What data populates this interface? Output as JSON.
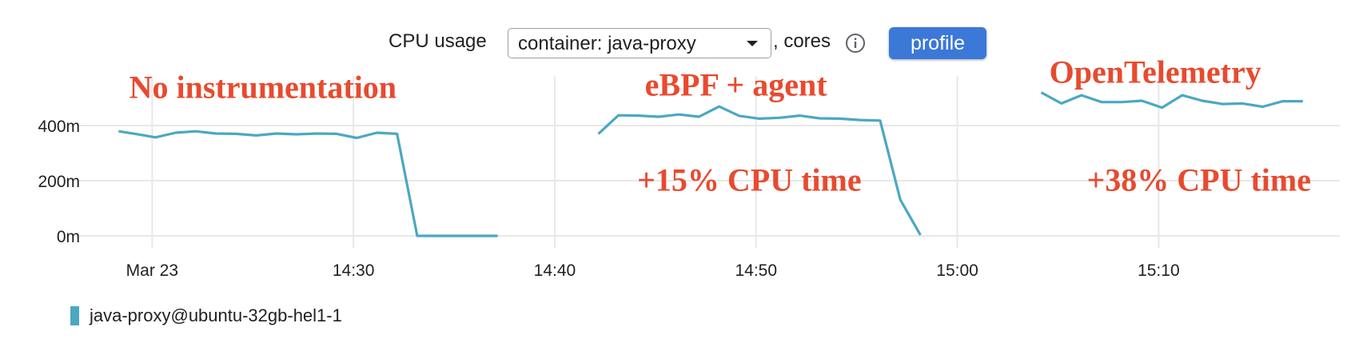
{
  "toolbar": {
    "title": "CPU usage",
    "select_value": "container: java-proxy",
    "units_text": ", cores",
    "info_icon": "info-icon",
    "profile_label": "profile"
  },
  "colors": {
    "series": "#4ba8c2",
    "annotation": "#e84a2f",
    "grid": "#e8e8e8",
    "button": "#3b78d8"
  },
  "chart_data": {
    "type": "line",
    "y_unit": "millicores",
    "y_ticks": [
      0,
      200,
      400
    ],
    "y_tick_labels": [
      "0m",
      "200m",
      "400m"
    ],
    "ylim": [
      0,
      470
    ],
    "x_ticks": [
      "14:20",
      "14:30",
      "14:40",
      "14:50",
      "15:00",
      "15:10"
    ],
    "x_tick_labels": [
      "Mar 23",
      "14:30",
      "14:40",
      "14:50",
      "15:00",
      "15:10"
    ],
    "xlim": [
      "14:16:20",
      "15:19:00"
    ],
    "grid": true,
    "legend_position": "bottom-left",
    "series": [
      {
        "name": "java-proxy@ubuntu-32gb-hel1-1",
        "segments": [
          [
            [
              "14:18:20",
              379
            ],
            [
              "14:19:10",
              370
            ],
            [
              "14:20:10",
              357
            ],
            [
              "14:21:10",
              374
            ],
            [
              "14:22:10",
              379
            ],
            [
              "14:23:10",
              371
            ],
            [
              "14:24:10",
              370
            ],
            [
              "14:25:10",
              364
            ],
            [
              "14:26:10",
              371
            ],
            [
              "14:27:10",
              368
            ],
            [
              "14:28:10",
              371
            ],
            [
              "14:29:10",
              370
            ],
            [
              "14:30:10",
              355
            ],
            [
              "14:31:10",
              374
            ],
            [
              "14:32:10",
              370
            ],
            [
              "14:33:10",
              0
            ],
            [
              "14:37:10",
              0
            ]
          ],
          [
            [
              "14:42:10",
              370
            ],
            [
              "14:43:10",
              437
            ],
            [
              "14:44:10",
              436
            ],
            [
              "14:45:10",
              432
            ],
            [
              "14:46:10",
              440
            ],
            [
              "14:47:10",
              432
            ],
            [
              "14:48:10",
              469
            ],
            [
              "14:49:10",
              435
            ],
            [
              "14:50:10",
              425
            ],
            [
              "14:51:10",
              428
            ],
            [
              "14:52:10",
              436
            ],
            [
              "14:53:10",
              426
            ],
            [
              "14:54:10",
              425
            ],
            [
              "14:55:10",
              420
            ],
            [
              "14:56:10",
              418
            ],
            [
              "14:57:10",
              131
            ],
            [
              "14:58:10",
              3
            ]
          ],
          [
            [
              "15:04:10",
              520
            ],
            [
              "15:05:10",
              480
            ],
            [
              "15:06:10",
              510
            ],
            [
              "15:07:10",
              485
            ],
            [
              "15:08:10",
              485
            ],
            [
              "15:09:10",
              490
            ],
            [
              "15:10:10",
              465
            ],
            [
              "15:11:10",
              510
            ],
            [
              "15:12:10",
              490
            ],
            [
              "15:13:10",
              478
            ],
            [
              "15:14:10",
              480
            ],
            [
              "15:15:10",
              468
            ],
            [
              "15:16:10",
              488
            ],
            [
              "15:17:10",
              488
            ]
          ]
        ]
      }
    ],
    "annotations": [
      {
        "text": "No instrumentation",
        "x": "14:25:30",
        "y": 540
      },
      {
        "text": "eBPF + agent",
        "x": "14:49:00",
        "y": 550
      },
      {
        "text": "+15% CPU time",
        "x": "14:49:40",
        "y": 205
      },
      {
        "text": "OpenTelemetry",
        "x": "15:09:50",
        "y": 595
      },
      {
        "text": "+38% CPU time",
        "x": "15:12:00",
        "y": 205
      }
    ]
  }
}
